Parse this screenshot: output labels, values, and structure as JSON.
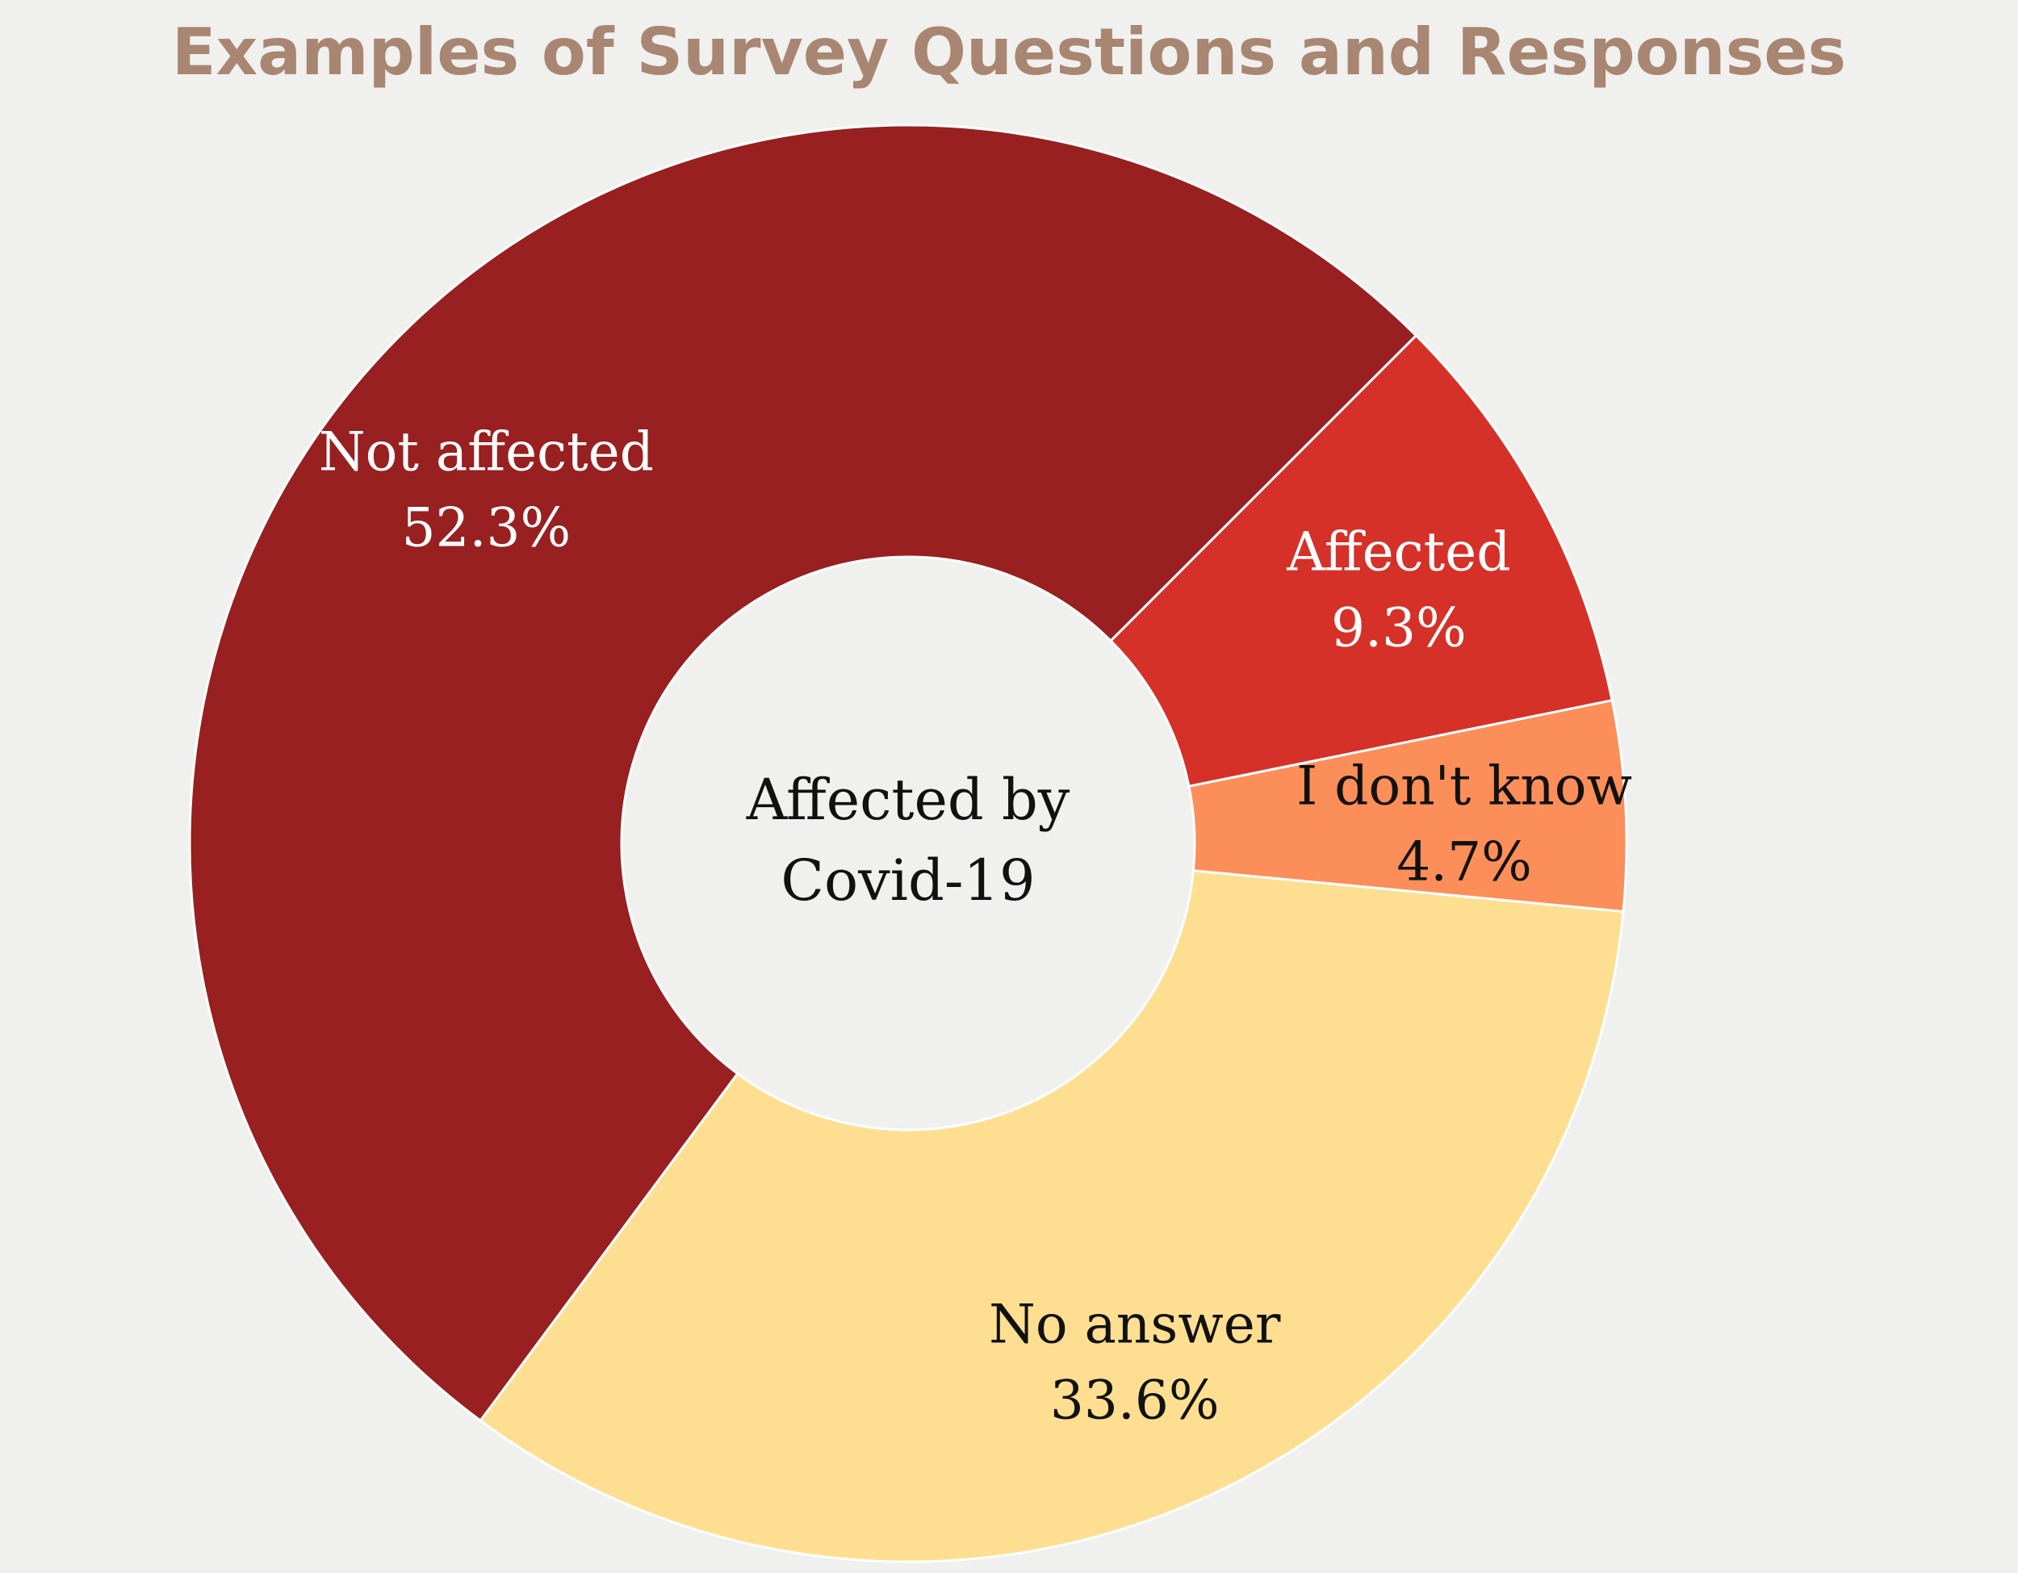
{
  "chart_data": {
    "type": "pie",
    "title": "Examples of Survey Questions and Responses",
    "center_text": [
      "Affected by",
      "Covid-19"
    ],
    "slices": [
      {
        "label": "Affected",
        "value": 9.3,
        "value_text": "9.3%",
        "color": "#d53128",
        "text_color": "#ffffff"
      },
      {
        "label": "I don't know",
        "value": 4.7,
        "value_text": "4.7%",
        "color": "#fc8e59",
        "text_color": "#111111"
      },
      {
        "label": "No answer",
        "value": 33.6,
        "value_text": "33.6%",
        "color": "#fedf91",
        "text_color": "#111111"
      },
      {
        "label": "Not affected",
        "value": 52.3,
        "value_text": "52.3%",
        "color": "#982020",
        "text_color": "#ffffff"
      }
    ],
    "start_angle_deg": 45,
    "legend": "none",
    "grid": false
  },
  "colors": {
    "background": "#f0f0ee",
    "title": "#a88672",
    "slice_edge": "#ffffff"
  }
}
